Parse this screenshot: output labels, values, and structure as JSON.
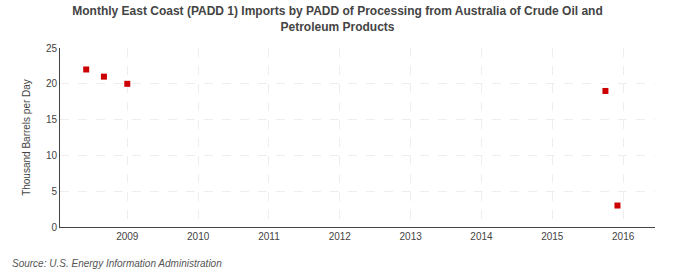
{
  "chart_data": {
    "type": "scatter",
    "title": "Monthly East Coast (PADD 1) Imports by PADD of Processing from Australia of Crude Oil and\nPetroleum Products",
    "ylabel": "Thousand Barrels per Day",
    "annotations": [
      "Source: U.S. Energy Information Administration"
    ],
    "x": [
      2008.42,
      2008.67,
      2009.0,
      2015.75,
      2015.92
    ],
    "values": [
      22.0,
      21.0,
      20.0,
      19.0,
      3.0
    ],
    "color": "#cc0000",
    "marker": "square",
    "xlim": [
      2008.05,
      2016.45
    ],
    "ylim": [
      0,
      25
    ],
    "xticks": [
      2009,
      2010,
      2011,
      2012,
      2013,
      2014,
      2015,
      2016
    ],
    "yticks": [
      0,
      5,
      10,
      15,
      20,
      25
    ],
    "grid": true
  }
}
